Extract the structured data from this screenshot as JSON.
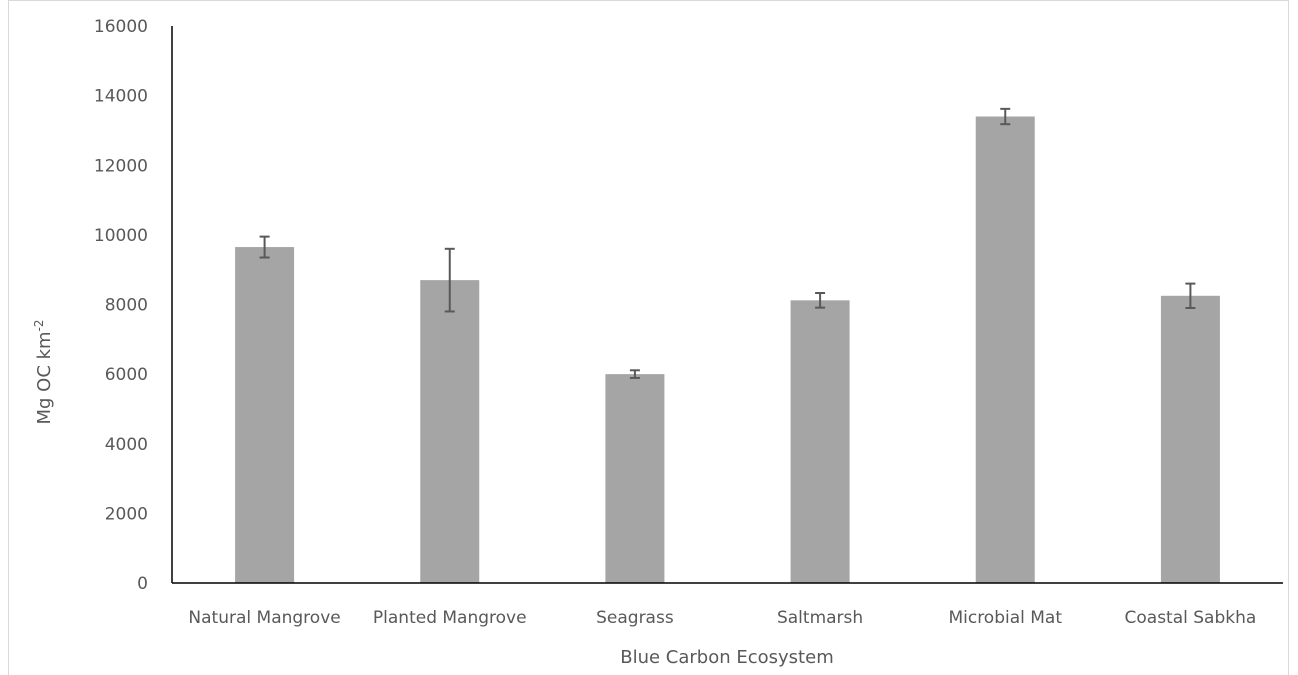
{
  "chart_data": {
    "type": "bar",
    "categories": [
      "Natural Mangrove",
      "Planted Mangrove",
      "Seagrass",
      "Saltmarsh",
      "Microbial Mat",
      "Coastal Sabkha"
    ],
    "values": [
      9650,
      8700,
      6000,
      8120,
      13400,
      8250
    ],
    "error": [
      300,
      900,
      110,
      210,
      220,
      350
    ],
    "xlabel": "Blue Carbon Ecosystem",
    "ylabel": "Mg OC km",
    "ylabel_superscript": "-2",
    "ylim": [
      0,
      16000
    ],
    "yticks": [
      0,
      2000,
      4000,
      6000,
      8000,
      10000,
      12000,
      14000,
      16000
    ],
    "grid": false,
    "colors": {
      "bar": "#a5a5a5",
      "errorbar": "#595959",
      "axis": "#000000"
    }
  }
}
